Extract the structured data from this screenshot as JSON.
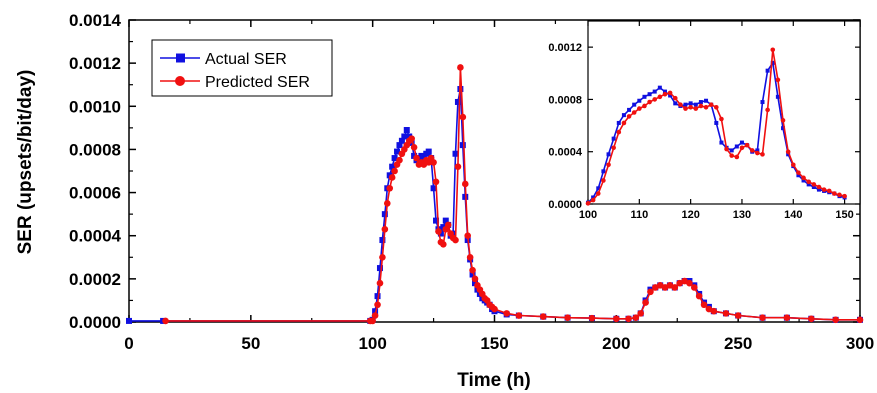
{
  "chart_data": {
    "type": "line",
    "xlabel": "Time (h)",
    "ylabel": "SER (upsets/bit/day)",
    "xlim": [
      0,
      300
    ],
    "ylim": [
      0,
      0.0014
    ],
    "xticks": [
      "0",
      "50",
      "100",
      "150",
      "200",
      "250",
      "300"
    ],
    "yticks": [
      "0.0000",
      "0.0002",
      "0.0004",
      "0.0006",
      "0.0008",
      "0.0010",
      "0.0012",
      "0.0014"
    ],
    "grid": false,
    "legend_position": "top-left",
    "colors": {
      "actual": "#1010e0",
      "predicted": "#f01010"
    },
    "series": [
      {
        "name": "Actual SER",
        "marker": "square",
        "color": "#1010e0",
        "x": [
          0,
          14,
          99,
          100,
          101,
          102,
          103,
          104,
          105,
          106,
          107,
          108,
          109,
          110,
          111,
          112,
          113,
          114,
          115,
          116,
          117,
          118,
          119,
          120,
          121,
          122,
          123,
          124,
          125,
          126,
          127,
          128,
          129,
          130,
          131,
          132,
          133,
          134,
          135,
          136,
          137,
          138,
          139,
          140,
          141,
          142,
          143,
          144,
          145,
          146,
          147,
          148,
          149,
          150,
          155,
          160,
          170,
          180,
          190,
          200,
          205,
          208,
          210,
          212,
          214,
          216,
          218,
          220,
          222,
          224,
          226,
          228,
          230,
          232,
          234,
          236,
          238,
          240,
          245,
          250,
          260,
          270,
          280,
          290,
          300
        ],
        "y": [
          5e-06,
          5e-06,
          5e-06,
          1e-05,
          5e-05,
          0.00012,
          0.00025,
          0.00038,
          0.0005,
          0.00062,
          0.00068,
          0.00072,
          0.00076,
          0.00079,
          0.00082,
          0.00084,
          0.00086,
          0.00089,
          0.00086,
          0.00083,
          0.00077,
          0.00075,
          0.00076,
          0.00077,
          0.00076,
          0.00078,
          0.00079,
          0.00076,
          0.00062,
          0.00047,
          0.00043,
          0.00041,
          0.00044,
          0.00047,
          0.00045,
          0.0004,
          0.00041,
          0.00078,
          0.00102,
          0.00108,
          0.00082,
          0.00058,
          0.00038,
          0.00029,
          0.00022,
          0.00018,
          0.00015,
          0.00013,
          0.00011,
          0.0001,
          9e-05,
          8e-05,
          6e-05,
          5e-05,
          3.5e-05,
          3e-05,
          2.5e-05,
          2e-05,
          1.8e-05,
          1.5e-05,
          1.5e-05,
          2e-05,
          4e-05,
          0.0001,
          0.00015,
          0.00016,
          0.00017,
          0.00016,
          0.00017,
          0.00016,
          0.00018,
          0.00019,
          0.00019,
          0.00017,
          0.00013,
          9e-05,
          7e-05,
          5e-05,
          4e-05,
          3e-05,
          2e-05,
          2e-05,
          1.5e-05,
          1e-05,
          1e-05
        ]
      },
      {
        "name": "Predicted SER",
        "marker": "circle",
        "color": "#f01010",
        "x": [
          15,
          99,
          100,
          101,
          102,
          103,
          104,
          105,
          106,
          107,
          108,
          109,
          110,
          111,
          112,
          113,
          114,
          115,
          116,
          117,
          118,
          119,
          120,
          121,
          122,
          123,
          124,
          125,
          126,
          127,
          128,
          129,
          130,
          131,
          132,
          133,
          134,
          135,
          136,
          137,
          138,
          139,
          140,
          141,
          142,
          143,
          144,
          145,
          146,
          147,
          148,
          149,
          150,
          155,
          160,
          170,
          180,
          190,
          200,
          205,
          208,
          210,
          212,
          214,
          216,
          218,
          220,
          222,
          224,
          226,
          228,
          230,
          232,
          234,
          236,
          238,
          240,
          245,
          250,
          260,
          270,
          280,
          290,
          300
        ],
        "y": [
          5e-06,
          5e-06,
          5e-06,
          3e-05,
          8e-05,
          0.00018,
          0.0003,
          0.00043,
          0.00055,
          0.00062,
          0.00067,
          0.0007,
          0.00073,
          0.00075,
          0.00078,
          0.0008,
          0.00082,
          0.00084,
          0.00085,
          0.00081,
          0.00076,
          0.00073,
          0.00074,
          0.00073,
          0.00075,
          0.00074,
          0.00076,
          0.00074,
          0.00065,
          0.00042,
          0.00037,
          0.00036,
          0.00043,
          0.00045,
          0.00041,
          0.00039,
          0.00038,
          0.00072,
          0.00118,
          0.00095,
          0.00064,
          0.0004,
          0.0003,
          0.00024,
          0.0002,
          0.00017,
          0.00015,
          0.00013,
          0.00011,
          0.0001,
          8e-05,
          7e-05,
          6e-05,
          4e-05,
          3e-05,
          2.5e-05,
          2e-05,
          1.8e-05,
          1.5e-05,
          1.5e-05,
          2e-05,
          4e-05,
          9e-05,
          0.00014,
          0.00016,
          0.00017,
          0.00016,
          0.00017,
          0.00016,
          0.00018,
          0.00019,
          0.00018,
          0.00016,
          0.00012,
          8e-05,
          6e-05,
          5e-05,
          4e-05,
          3e-05,
          2e-05,
          2e-05,
          1.5e-05,
          1e-05,
          1e-05
        ]
      }
    ],
    "inset": {
      "xlim": [
        100,
        153
      ],
      "ylim": [
        0,
        0.0014
      ],
      "xticks": [
        "100",
        "110",
        "120",
        "130",
        "140",
        "150"
      ],
      "yticks": [
        "0.0000",
        "0.0004",
        "0.0008",
        "0.0012"
      ]
    }
  }
}
